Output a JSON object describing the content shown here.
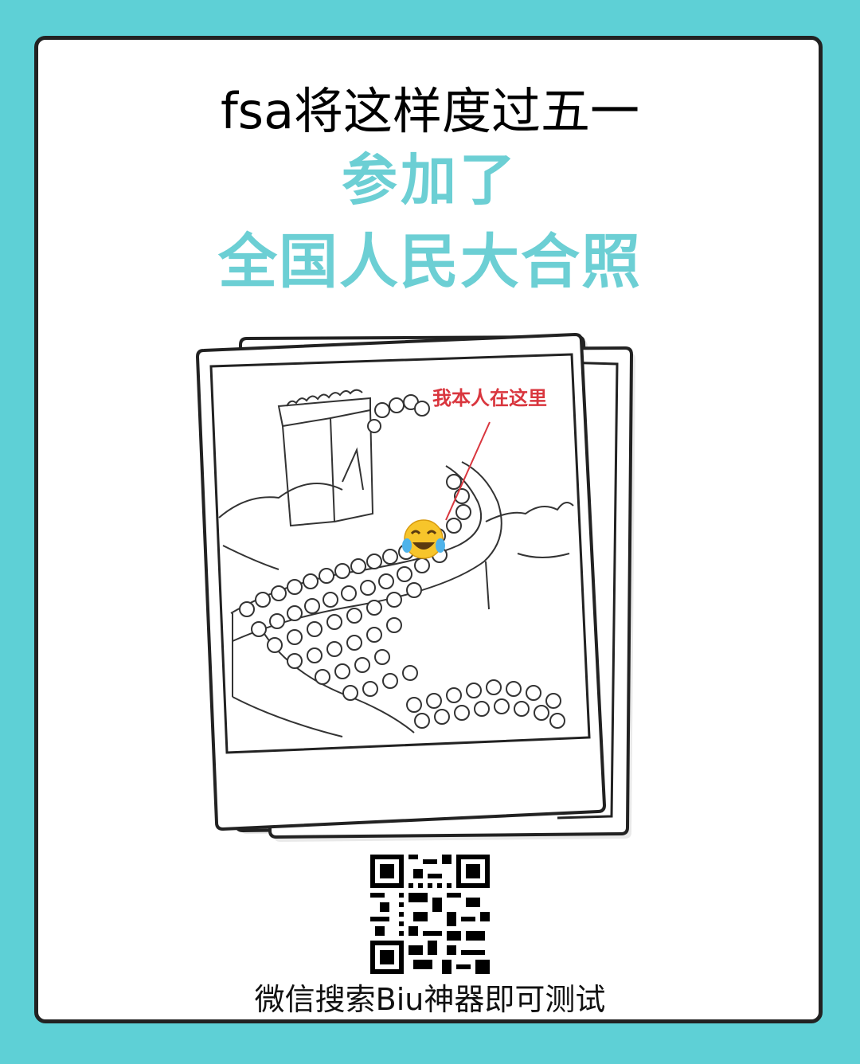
{
  "header": {
    "title": "fsa将这样度过五一",
    "subtitle_line1": "参加了",
    "subtitle_line2": "全国人民大合照"
  },
  "photo": {
    "annotation": "我本人在这里",
    "emoji_icon": "laughing-crying-face-icon",
    "annotation_color": "#d9363e"
  },
  "footer": {
    "instruction": "微信搜索Biu神器即可测试"
  },
  "colors": {
    "background": "#5ed0d6",
    "accent": "#6ccfd4",
    "text": "#000000"
  }
}
